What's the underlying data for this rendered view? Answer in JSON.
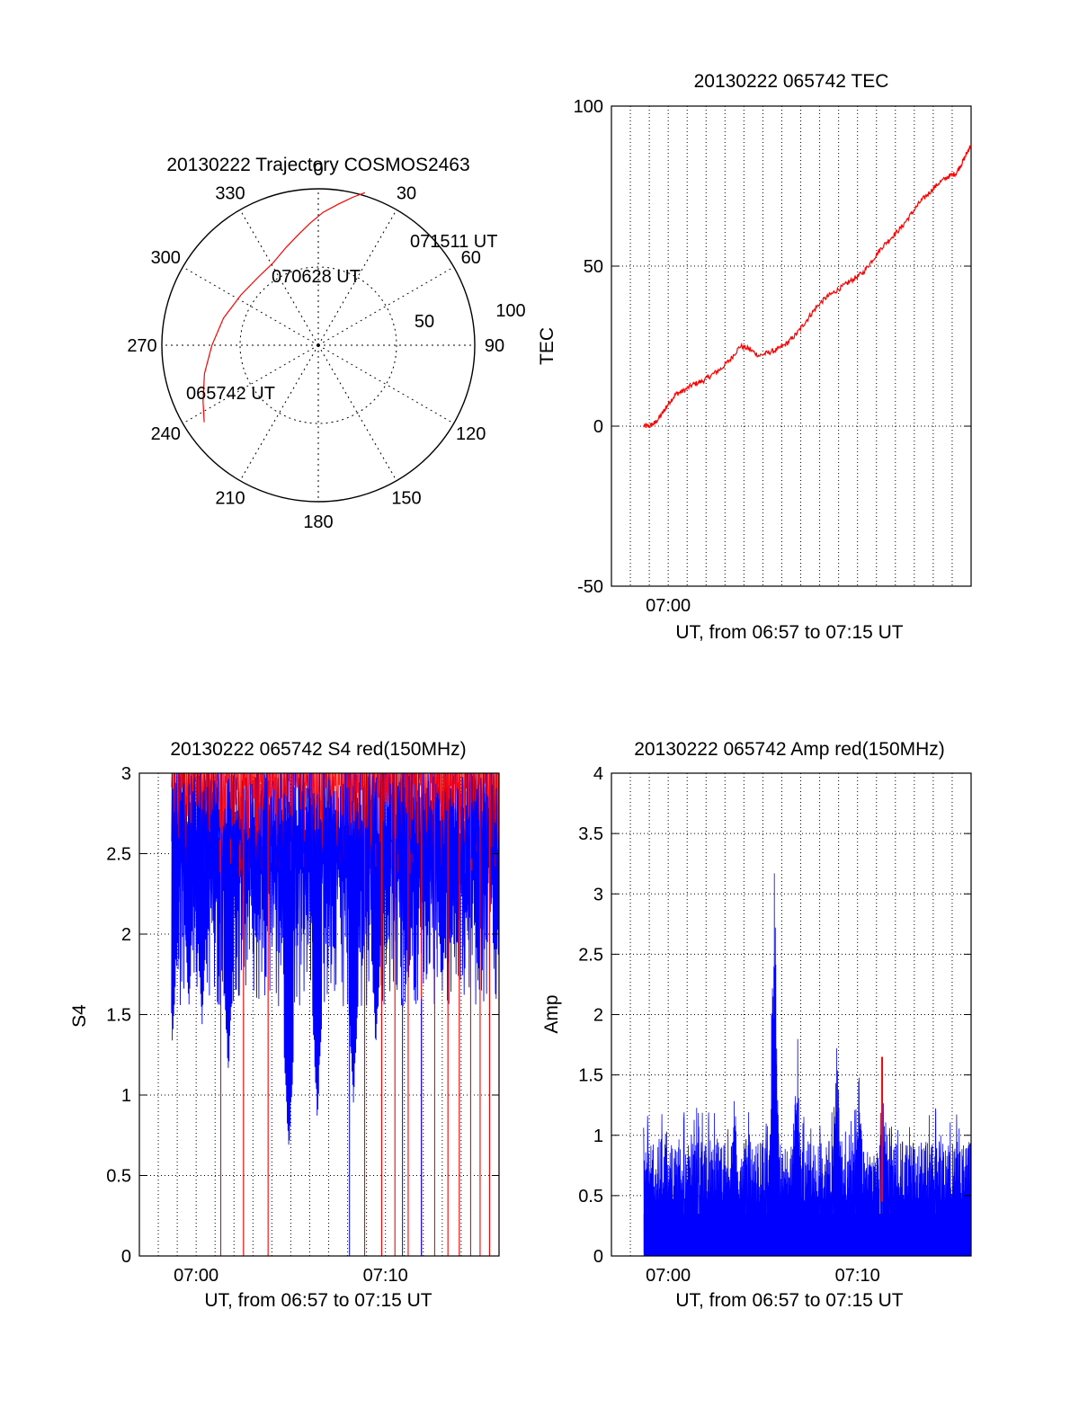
{
  "chart_data": [
    {
      "type": "polar",
      "title": "20130222 Trajectory COSMOS2463",
      "angle_labels": [
        "0",
        "30",
        "60",
        "90",
        "120",
        "150",
        "180",
        "210",
        "240",
        "270",
        "300",
        "330"
      ],
      "radius_labels": [
        "50",
        "100"
      ],
      "trajectory": [
        {
          "az": 236,
          "r": 88
        },
        {
          "az": 244,
          "r": 82
        },
        {
          "az": 256,
          "r": 75
        },
        {
          "az": 270,
          "r": 68
        },
        {
          "az": 286,
          "r": 63
        },
        {
          "az": 303,
          "r": 59
        },
        {
          "az": 318,
          "r": 58
        },
        {
          "az": 331,
          "r": 60
        },
        {
          "az": 342,
          "r": 66
        },
        {
          "az": 350,
          "r": 72
        },
        {
          "az": 356,
          "r": 78
        },
        {
          "az": 2,
          "r": 85
        },
        {
          "az": 8,
          "r": 91
        },
        {
          "az": 13,
          "r": 97
        },
        {
          "az": 17,
          "r": 102
        }
      ],
      "annotations": [
        "071511 UT",
        "070628 UT",
        "065742 UT"
      ],
      "colors": {
        "trajectory": "#ff0000"
      }
    },
    {
      "type": "line",
      "title": "20130222 065742 TEC",
      "ylabel": "TEC",
      "xlabel": "UT, from 06:57 to 07:15 UT",
      "xlim": [
        6.0,
        25.0
      ],
      "ylim": [
        -50,
        100
      ],
      "yticks": [
        "100",
        "50",
        "0",
        "-50"
      ],
      "xticks": [
        {
          "x": 9.0,
          "label": "07:00"
        }
      ],
      "x": [
        7.7,
        8.0,
        8.3,
        8.7,
        9.0,
        9.4,
        9.8,
        10.3,
        10.8,
        11.3,
        11.8,
        12.3,
        12.8,
        13.3,
        13.8,
        14.3,
        14.8,
        15.3,
        15.8,
        16.3,
        16.8,
        17.3,
        17.8,
        18.3,
        18.8,
        19.3,
        19.8,
        20.3,
        20.8,
        21.3,
        21.8,
        22.3,
        22.8,
        23.3,
        23.8,
        24.2,
        24.5,
        24.75,
        25.0
      ],
      "y": [
        0,
        0,
        1,
        4,
        7,
        10,
        11,
        13,
        14,
        16,
        18,
        21,
        25,
        24,
        22,
        23,
        24,
        26,
        29,
        33,
        37,
        40,
        42,
        44,
        46,
        48,
        52,
        56,
        59,
        62,
        66,
        70,
        73,
        76,
        78,
        79,
        82,
        85,
        88
      ],
      "colors": {
        "line": "#ff0000"
      }
    },
    {
      "type": "line",
      "title": "20130222 065742 S4 red(150MHz)",
      "ylabel": "S4",
      "xlabel": "UT, from 06:57 to 07:15 UT",
      "xlim": [
        6.0,
        25.0
      ],
      "ylim": [
        0,
        3
      ],
      "yticks": [
        "3",
        "2.5",
        "2",
        "1.5",
        "1",
        "0.5",
        "0"
      ],
      "xticks": [
        {
          "x": 9.0,
          "label": "07:00"
        },
        {
          "x": 19.0,
          "label": "07:10"
        }
      ],
      "dips_blue": [
        {
          "x": 7.75,
          "y": 1.3
        },
        {
          "x": 8.6,
          "y": 1.5
        },
        {
          "x": 9.3,
          "y": 1.4
        },
        {
          "x": 10.7,
          "y": 1.1
        },
        {
          "x": 13.9,
          "y": 0.6
        },
        {
          "x": 15.4,
          "y": 0.84
        },
        {
          "x": 17.3,
          "y": 0.9
        },
        {
          "x": 18.5,
          "y": 1.25
        },
        {
          "x": 20.2,
          "y": 1.6
        },
        {
          "x": 22.0,
          "y": 1.6
        }
      ],
      "red_drops_x": [
        10.3,
        11.5,
        12.8,
        17.9,
        18.8,
        19.5,
        20.2,
        20.9,
        21.6,
        22.3,
        22.9,
        23.5,
        24.0,
        24.5,
        25.0
      ],
      "colors": {
        "blue": "#0000ff",
        "red": "#ff0000"
      }
    },
    {
      "type": "bar",
      "title": "20130222 065742 Amp red(150MHz)",
      "ylabel": "Amp",
      "xlabel": "UT, from 06:57 to 07:15 UT",
      "xlim": [
        6.0,
        25.0
      ],
      "ylim": [
        0,
        4
      ],
      "yticks": [
        "4",
        "3.5",
        "3",
        "2.5",
        "2",
        "1.5",
        "1",
        "0.5",
        "0"
      ],
      "xticks": [
        {
          "x": 9.0,
          "label": "07:00"
        },
        {
          "x": 19.0,
          "label": "07:10"
        }
      ],
      "peaks": [
        {
          "x": 12.5,
          "y": 1.6
        },
        {
          "x": 14.6,
          "y": 3.4
        },
        {
          "x": 15.8,
          "y": 2.1
        },
        {
          "x": 17.9,
          "y": 1.9
        },
        {
          "x": 19.1,
          "y": 1.7
        },
        {
          "x": 20.3,
          "y": 1.65
        }
      ],
      "colors": {
        "blue": "#0000ff",
        "red": "#ff0000"
      }
    }
  ]
}
